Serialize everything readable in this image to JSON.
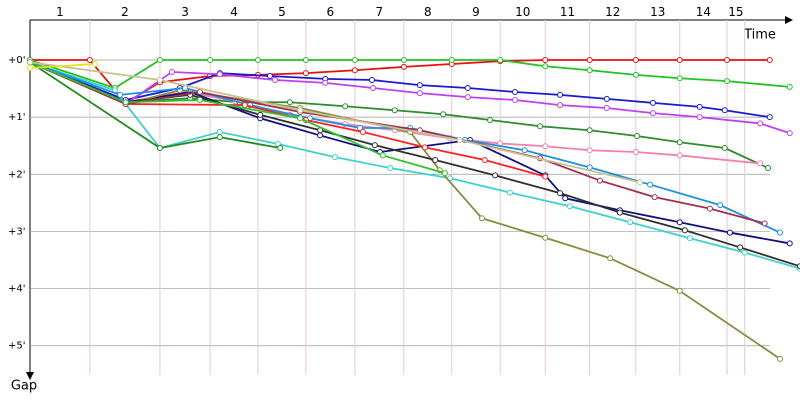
{
  "chart_data": {
    "type": "line",
    "x_label": "Time",
    "y_label": "Gap",
    "xlim": [
      0,
      13.51
    ],
    "ylim": [
      -0.7,
      5.6
    ],
    "inverted_y": true,
    "grid": true,
    "xticks": [
      {
        "value": 1.05,
        "label": "1"
      },
      {
        "value": 2.28,
        "label": "2"
      },
      {
        "value": 3.16,
        "label": "3"
      },
      {
        "value": 4.0,
        "label": "4"
      },
      {
        "value": 4.84,
        "label": "5"
      },
      {
        "value": 5.7,
        "label": "6"
      },
      {
        "value": 6.56,
        "label": "7"
      },
      {
        "value": 7.4,
        "label": "8"
      },
      {
        "value": 8.25,
        "label": "9"
      },
      {
        "value": 9.04,
        "label": "10"
      },
      {
        "value": 9.82,
        "label": "11"
      },
      {
        "value": 10.63,
        "label": "12"
      },
      {
        "value": 11.4,
        "label": "13"
      },
      {
        "value": 12.23,
        "label": "14"
      },
      {
        "value": 12.54,
        "label": "15"
      }
    ],
    "yticks": [
      {
        "value": 0,
        "label": "+0'"
      },
      {
        "value": 1,
        "label": "+1'"
      },
      {
        "value": 2,
        "label": "+2'"
      },
      {
        "value": 3,
        "label": "+3'"
      },
      {
        "value": 4,
        "label": "+4'"
      },
      {
        "value": 5,
        "label": "+5'"
      }
    ],
    "series": [
      {
        "color": "#e81010",
        "x": [
          0,
          1.05,
          1.68,
          2.28,
          3.16,
          4.0,
          4.84,
          5.7,
          6.56,
          7.4,
          8.25,
          9.04,
          9.82,
          10.63,
          11.4,
          12.23,
          12.98
        ],
        "values": [
          0,
          0,
          0.75,
          0.39,
          0.28,
          0.26,
          0.23,
          0.18,
          0.12,
          0.07,
          0.02,
          0,
          0,
          0,
          0,
          0,
          0
        ]
      },
      {
        "color": "#22c322",
        "x": [
          0,
          1.49,
          2.28,
          3.16,
          4.0,
          4.84,
          5.7,
          6.56,
          7.4,
          8.25,
          9.04,
          9.82,
          10.63,
          11.4,
          12.23,
          13.33
        ],
        "values": [
          0,
          0.49,
          0,
          0,
          0,
          0,
          0,
          0,
          0,
          0,
          0.11,
          0.18,
          0.26,
          0.32,
          0.37,
          0.47
        ]
      },
      {
        "color": "#1a1ad0",
        "x": [
          0,
          1.68,
          2.63,
          3.33,
          4.21,
          5.18,
          6.0,
          6.84,
          7.68,
          8.51,
          9.3,
          10.12,
          10.93,
          11.75,
          12.19,
          12.98
        ],
        "values": [
          0.04,
          0.7,
          0.49,
          0.23,
          0.28,
          0.33,
          0.35,
          0.44,
          0.49,
          0.56,
          0.61,
          0.68,
          0.75,
          0.82,
          0.88,
          1.0
        ]
      },
      {
        "color": "#c040f0",
        "x": [
          0,
          1.68,
          2.49,
          3.33,
          4.3,
          5.18,
          6.02,
          6.84,
          7.68,
          8.51,
          9.3,
          10.12,
          10.93,
          11.75,
          12.81,
          13.33
        ],
        "values": [
          0.04,
          0.77,
          0.21,
          0.25,
          0.35,
          0.4,
          0.49,
          0.58,
          0.65,
          0.7,
          0.79,
          0.84,
          0.93,
          1.0,
          1.11,
          1.28
        ]
      },
      {
        "color": "#2e8b2e",
        "x": [
          0,
          1.68,
          2.81,
          3.68,
          4.56,
          5.53,
          6.4,
          7.25,
          8.07,
          8.95,
          9.82,
          10.65,
          11.4,
          12.19,
          12.95
        ],
        "values": [
          0.04,
          0.74,
          0.67,
          0.74,
          0.74,
          0.81,
          0.88,
          0.95,
          1.05,
          1.16,
          1.23,
          1.33,
          1.44,
          1.54,
          1.89
        ]
      },
      {
        "color": "#f080b0",
        "x": [
          0,
          1.68,
          2.72,
          3.6,
          4.56,
          5.53,
          6.4,
          7.37,
          8.25,
          9.04,
          9.82,
          10.63,
          11.4,
          12.81
        ],
        "values": [
          0.04,
          0.74,
          0.56,
          0.72,
          0.96,
          1.12,
          1.23,
          1.37,
          1.46,
          1.51,
          1.58,
          1.61,
          1.67,
          1.81
        ]
      },
      {
        "color": "#101080",
        "x": [
          0,
          1.68,
          2.81,
          4.04,
          5.09,
          6.14,
          7.72,
          9.04,
          9.39,
          10.35,
          11.4,
          12.28,
          13.33
        ],
        "values": [
          0.04,
          0.74,
          0.56,
          1.02,
          1.32,
          1.61,
          1.4,
          2.02,
          2.42,
          2.63,
          2.84,
          3.02,
          3.21
        ]
      },
      {
        "color": "#40d0d0",
        "x": [
          0,
          1.49,
          2.28,
          3.33,
          4.35,
          5.35,
          6.32,
          7.37,
          8.42,
          9.47,
          10.53,
          11.58,
          12.54,
          13.51
        ],
        "values": [
          0.04,
          0.53,
          1.54,
          1.26,
          1.47,
          1.7,
          1.89,
          2.07,
          2.32,
          2.56,
          2.84,
          3.12,
          3.37,
          3.65
        ]
      },
      {
        "color": "#8a8a40",
        "x": [
          0,
          1.68,
          2.63,
          4.74,
          6.67,
          7.19,
          7.93,
          9.04,
          10.18,
          11.4,
          13.16
        ],
        "values": [
          0.04,
          0.77,
          0.53,
          0.84,
          1.26,
          1.93,
          2.77,
          3.11,
          3.47,
          4.04,
          5.23
        ]
      },
      {
        "color": "#303030",
        "x": [
          0,
          1.68,
          2.81,
          4.04,
          5.09,
          6.05,
          7.11,
          8.16,
          9.3,
          10.35,
          11.49,
          12.46,
          13.51
        ],
        "values": [
          0.04,
          0.74,
          0.61,
          0.96,
          1.23,
          1.49,
          1.75,
          2.02,
          2.33,
          2.67,
          2.98,
          3.28,
          3.61
        ]
      },
      {
        "color": "#1e90e0",
        "x": [
          0,
          1.58,
          2.72,
          3.86,
          4.91,
          5.79,
          6.67,
          7.63,
          8.68,
          9.82,
          10.88,
          12.11,
          13.16
        ],
        "values": [
          0.04,
          0.61,
          0.49,
          0.79,
          1.02,
          1.19,
          1.19,
          1.4,
          1.58,
          1.88,
          2.18,
          2.54,
          3.02
        ]
      },
      {
        "color": "#ff2020",
        "x": [
          0,
          1.68,
          3.77,
          4.84,
          5.84,
          6.93,
          7.98,
          9.04
        ],
        "values": [
          0.04,
          0.77,
          0.79,
          1.05,
          1.26,
          1.53,
          1.75,
          2.04
        ]
      },
      {
        "color": "#a03050",
        "x": [
          0,
          1.68,
          2.98,
          4.74,
          6.84,
          8.95,
          10.0,
          10.96,
          11.93,
          12.89
        ],
        "values": [
          0.04,
          0.77,
          0.56,
          0.91,
          1.23,
          1.72,
          2.11,
          2.4,
          2.6,
          2.86
        ]
      },
      {
        "color": "#228b22",
        "x": [
          0,
          2.28,
          3.33,
          4.39
        ],
        "values": [
          0.04,
          1.54,
          1.35,
          1.54
        ]
      },
      {
        "color": "#30c030",
        "x": [
          0,
          1.68,
          2.98,
          4.74,
          6.19,
          7.28
        ],
        "values": [
          0.04,
          0.74,
          0.7,
          1.02,
          1.67,
          1.98
        ]
      },
      {
        "color": "#c8c090",
        "x": [
          0,
          2.28,
          4.74,
          7.54,
          10.7
        ],
        "values": [
          0.04,
          0.35,
          0.88,
          1.4,
          2.14
        ]
      },
      {
        "color": "#e8e020",
        "x": [
          0,
          1.14
        ],
        "values": [
          0.14,
          0.07
        ]
      }
    ]
  }
}
